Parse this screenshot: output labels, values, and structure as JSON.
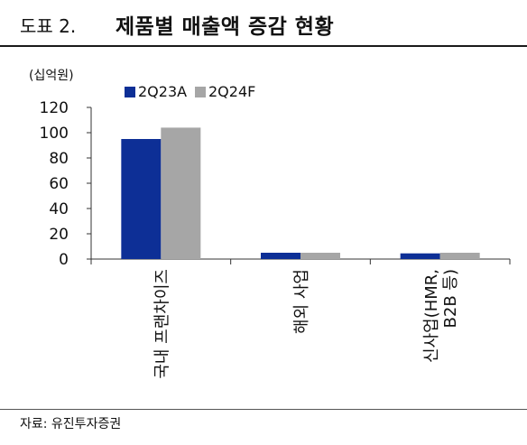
{
  "header": {
    "figure_label": "도표 2.",
    "title": "제품별 매출액 증감 현황"
  },
  "footer": {
    "source": "자료: 유진투자증권"
  },
  "colors": {
    "series_2Q23A": "#0d2f96",
    "series_2Q24F": "#a6a6a6",
    "axis": "#333333"
  },
  "chart_data": {
    "type": "bar",
    "title": "",
    "unit_label": "(십억원)",
    "xlabel": "",
    "ylabel": "",
    "categories": [
      [
        "국내 프랜차이즈"
      ],
      [
        "해외 사업"
      ],
      [
        "신사업(HMR,",
        "B2B 등)"
      ]
    ],
    "series": [
      {
        "name": "2Q23A",
        "values": [
          95,
          5,
          4.5
        ]
      },
      {
        "name": "2Q24F",
        "values": [
          104,
          5,
          5
        ]
      }
    ],
    "ylim": [
      0,
      120
    ],
    "yticks": [
      0,
      20,
      40,
      60,
      80,
      100,
      120
    ],
    "grid": false,
    "legend_position": "top-left"
  }
}
